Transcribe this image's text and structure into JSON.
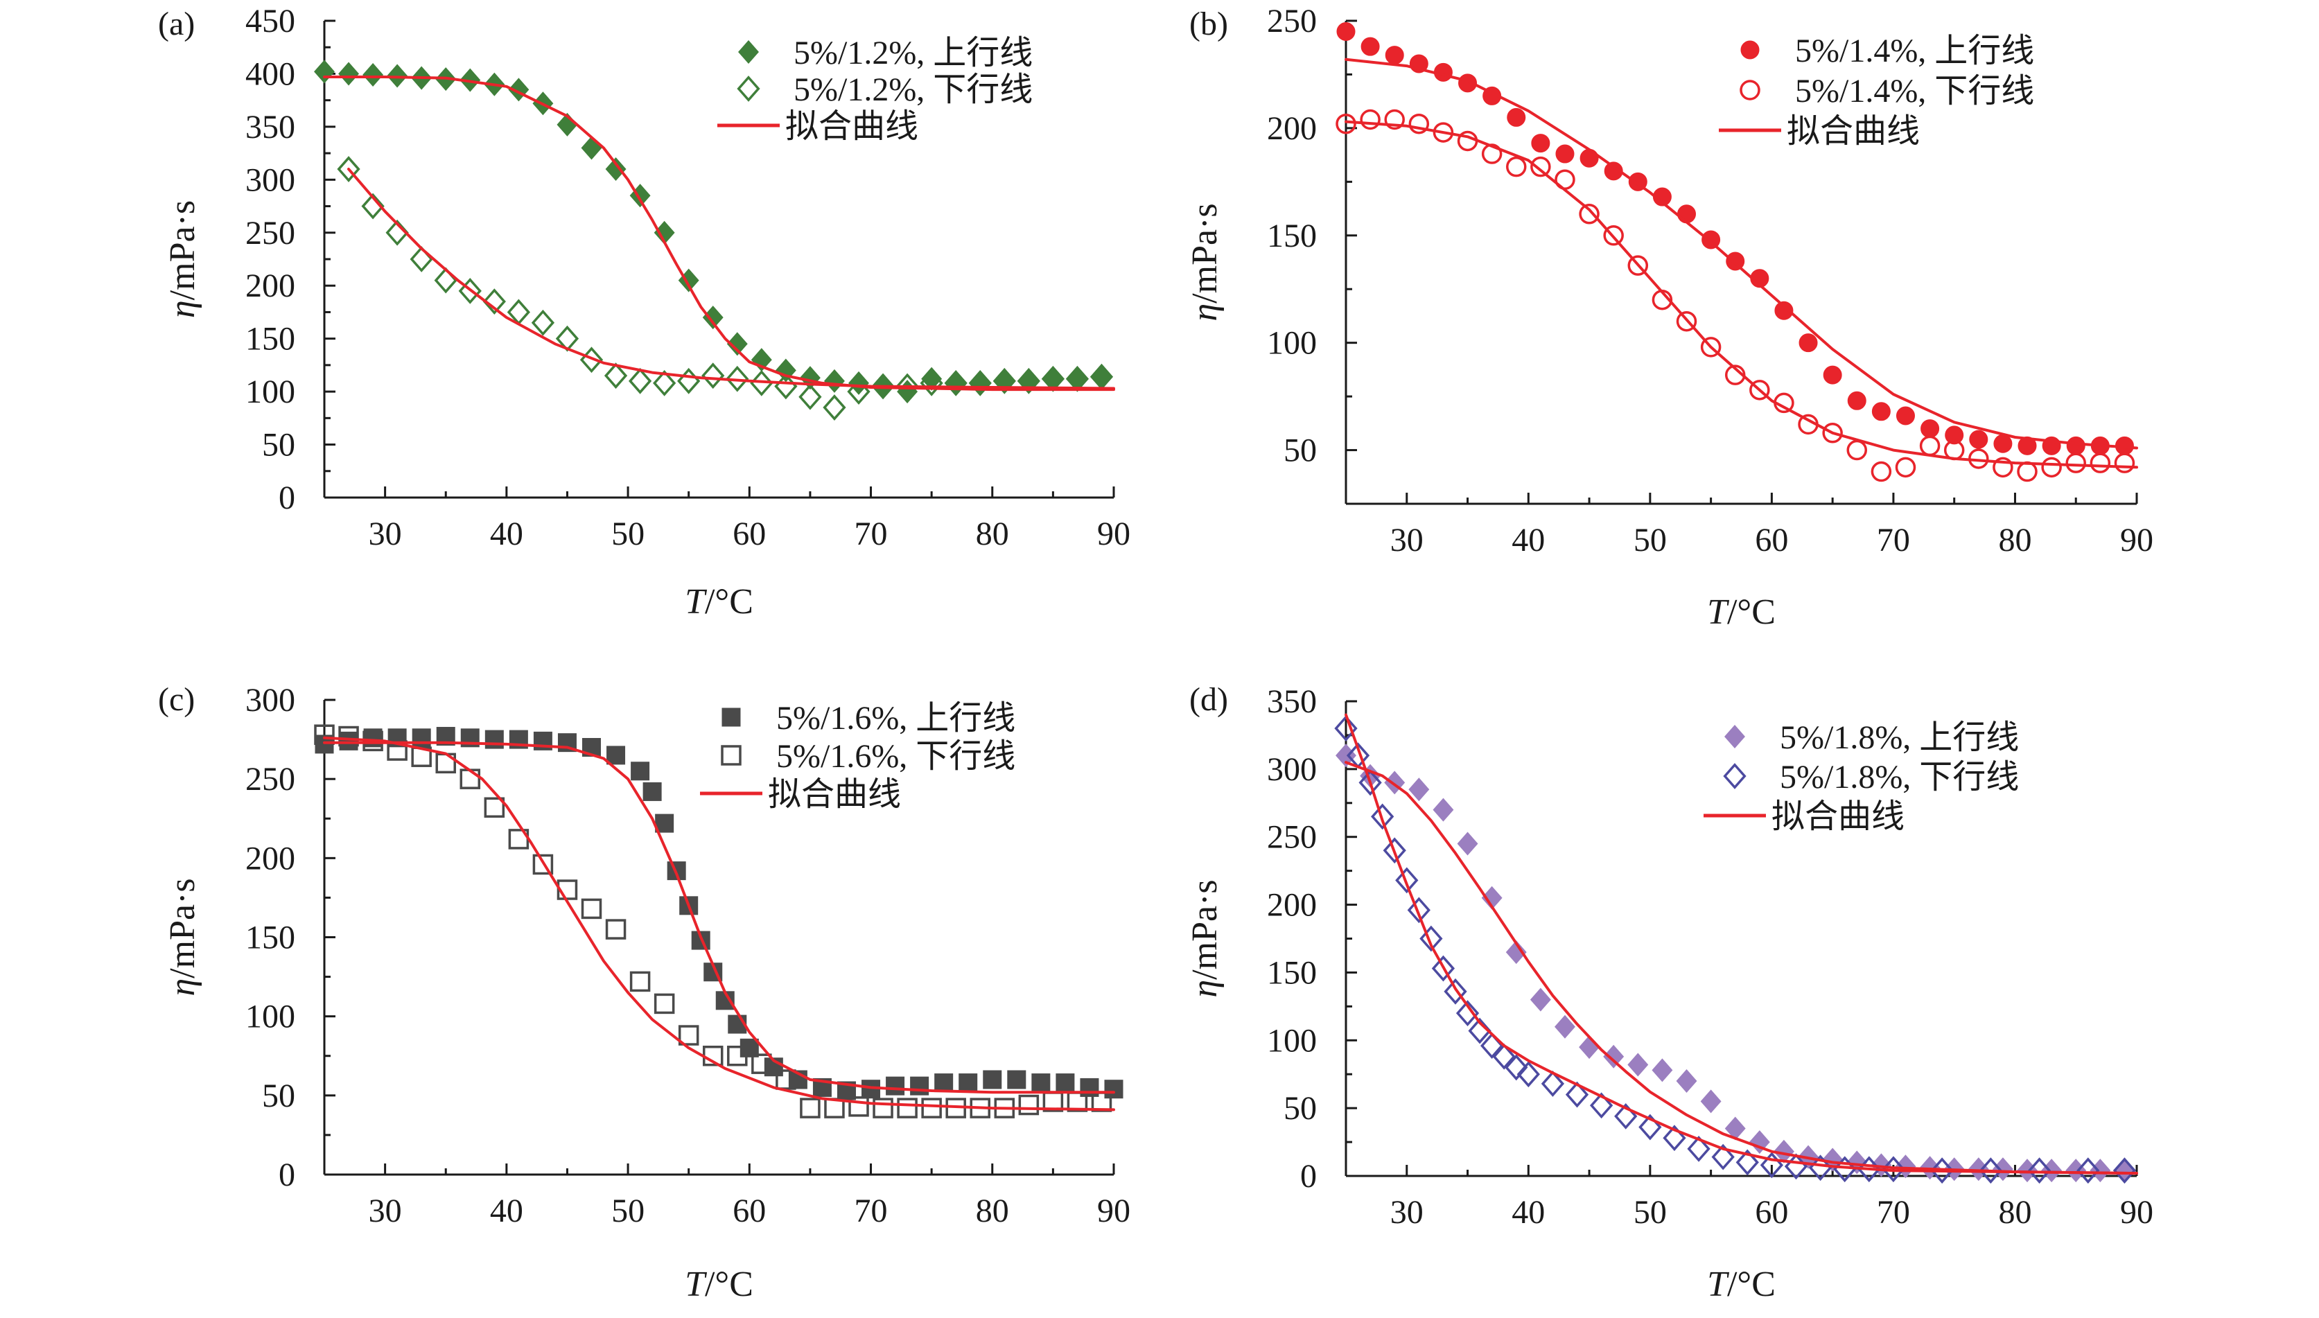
{
  "chart_data": [
    {
      "type": "scatter",
      "panel_label": "(a)",
      "xlabel_var": "T",
      "xlabel_unit": "/°C",
      "ylabel_var": "η",
      "ylabel_unit": "/mPa·s",
      "xlim": [
        25,
        90
      ],
      "ylim": [
        0,
        450
      ],
      "xticks": [
        30,
        40,
        50,
        60,
        70,
        80,
        90
      ],
      "yticks": [
        0,
        50,
        100,
        150,
        200,
        250,
        300,
        350,
        400,
        450
      ],
      "legend_position": "top-right",
      "colors": {
        "series": "#3f7f3a",
        "fit": "#e8242b"
      },
      "series": [
        {
          "name": "5%/1.2%, 上行线",
          "marker": "diamond-filled",
          "x": [
            25,
            27,
            29,
            31,
            33,
            35,
            37,
            39,
            41,
            43,
            45,
            47,
            49,
            51,
            53,
            55,
            57,
            59,
            61,
            63,
            65,
            67,
            69,
            71,
            73,
            75,
            77,
            79,
            81,
            83,
            85,
            87,
            89
          ],
          "y": [
            402,
            400,
            399,
            398,
            396,
            395,
            394,
            390,
            385,
            372,
            352,
            330,
            310,
            285,
            250,
            205,
            170,
            145,
            130,
            120,
            113,
            110,
            108,
            106,
            100,
            112,
            108,
            108,
            110,
            110,
            112,
            113,
            114
          ]
        },
        {
          "name": "5%/1.2%, 下行线",
          "marker": "diamond-open",
          "x": [
            27,
            29,
            31,
            33,
            35,
            37,
            39,
            41,
            43,
            45,
            47,
            49,
            51,
            53,
            55,
            57,
            59,
            61,
            63,
            65,
            67,
            69,
            71,
            73,
            75,
            77,
            79,
            81,
            83,
            85,
            87,
            89
          ],
          "y": [
            310,
            275,
            250,
            225,
            205,
            195,
            185,
            175,
            165,
            150,
            130,
            115,
            110,
            108,
            110,
            115,
            112,
            108,
            105,
            95,
            85,
            100,
            105,
            105,
            108,
            108,
            108,
            110,
            110,
            112,
            112,
            114
          ]
        },
        {
          "name": "拟合曲线",
          "type": "line",
          "x": [
            25,
            30,
            35,
            40,
            45,
            48,
            50,
            52,
            54,
            56,
            58,
            60,
            63,
            66,
            70,
            75,
            80,
            85,
            90
          ],
          "y": [
            397,
            397,
            396,
            388,
            360,
            330,
            300,
            262,
            220,
            180,
            150,
            128,
            115,
            108,
            104,
            103,
            102,
            102,
            102
          ]
        },
        {
          "type": "line",
          "x": [
            27,
            30,
            33,
            36,
            40,
            44,
            48,
            52,
            56,
            60,
            65,
            70,
            80,
            90
          ],
          "y": [
            310,
            270,
            235,
            205,
            170,
            145,
            127,
            118,
            113,
            110,
            107,
            105,
            104,
            103
          ]
        }
      ]
    },
    {
      "type": "scatter",
      "panel_label": "(b)",
      "xlabel_var": "T",
      "xlabel_unit": "/°C",
      "ylabel_var": "η",
      "ylabel_unit": "/mPa·s",
      "xlim": [
        25,
        90
      ],
      "ylim": [
        25,
        250
      ],
      "xticks": [
        30,
        40,
        50,
        60,
        70,
        80,
        90
      ],
      "yticks": [
        50,
        100,
        150,
        200,
        250
      ],
      "legend_position": "top-right",
      "colors": {
        "series": "#e8242b",
        "fit": "#e8242b"
      },
      "series": [
        {
          "name": "5%/1.4%, 上行线",
          "marker": "circle-filled",
          "x": [
            25,
            27,
            29,
            31,
            33,
            35,
            37,
            39,
            41,
            43,
            45,
            47,
            49,
            51,
            53,
            55,
            57,
            59,
            61,
            63,
            65,
            67,
            69,
            71,
            73,
            75,
            77,
            79,
            81,
            83,
            85,
            87,
            89
          ],
          "y": [
            245,
            238,
            234,
            230,
            226,
            221,
            215,
            205,
            193,
            188,
            186,
            180,
            175,
            168,
            160,
            148,
            138,
            130,
            115,
            100,
            85,
            73,
            68,
            66,
            60,
            57,
            55,
            53,
            52,
            52,
            52,
            52,
            52
          ]
        },
        {
          "name": "5%/1.4%, 下行线",
          "marker": "circle-open",
          "x": [
            25,
            27,
            29,
            31,
            33,
            35,
            37,
            39,
            41,
            43,
            45,
            47,
            49,
            51,
            53,
            55,
            57,
            59,
            61,
            63,
            65,
            67,
            69,
            71,
            73,
            75,
            77,
            79,
            81,
            83,
            85,
            87,
            89
          ],
          "y": [
            202,
            204,
            204,
            202,
            198,
            194,
            188,
            182,
            182,
            176,
            160,
            150,
            136,
            120,
            110,
            98,
            85,
            78,
            72,
            62,
            58,
            50,
            40,
            42,
            52,
            50,
            46,
            42,
            40,
            42,
            44,
            44,
            44
          ]
        },
        {
          "name": "拟合曲线",
          "type": "line",
          "x": [
            25,
            30,
            35,
            40,
            45,
            50,
            55,
            60,
            65,
            70,
            75,
            80,
            85,
            90
          ],
          "y": [
            232,
            229,
            222,
            208,
            190,
            170,
            147,
            122,
            97,
            76,
            63,
            56,
            53,
            51
          ]
        },
        {
          "type": "line",
          "x": [
            25,
            30,
            35,
            40,
            45,
            50,
            55,
            60,
            65,
            70,
            75,
            80,
            85,
            90
          ],
          "y": [
            203,
            201,
            196,
            185,
            162,
            130,
            98,
            73,
            58,
            50,
            46,
            44,
            43,
            42
          ]
        }
      ]
    },
    {
      "type": "scatter",
      "panel_label": "(c)",
      "xlabel_var": "T",
      "xlabel_unit": "/°C",
      "ylabel_var": "η",
      "ylabel_unit": "/mPa·s",
      "xlim": [
        25,
        90
      ],
      "ylim": [
        0,
        300
      ],
      "xticks": [
        30,
        40,
        50,
        60,
        70,
        80,
        90
      ],
      "yticks": [
        0,
        50,
        100,
        150,
        200,
        250,
        300
      ],
      "legend_position": "top-right",
      "colors": {
        "series": "#4a4a4a",
        "fit": "#e8242b"
      },
      "series": [
        {
          "name": "5%/1.6%, 上行线",
          "marker": "square-filled",
          "x": [
            25,
            27,
            29,
            31,
            33,
            35,
            37,
            39,
            41,
            43,
            45,
            47,
            49,
            51,
            52,
            53,
            54,
            55,
            56,
            57,
            58,
            59,
            60,
            62,
            64,
            66,
            68,
            70,
            72,
            74,
            76,
            78,
            80,
            82,
            84,
            86,
            88,
            90
          ],
          "y": [
            272,
            274,
            276,
            276,
            276,
            277,
            276,
            275,
            275,
            274,
            273,
            270,
            265,
            255,
            242,
            222,
            192,
            170,
            148,
            128,
            110,
            95,
            80,
            68,
            60,
            55,
            53,
            54,
            56,
            56,
            58,
            58,
            60,
            60,
            58,
            58,
            55,
            54
          ]
        },
        {
          "name": "5%/1.6%, 下行线",
          "marker": "square-open",
          "x": [
            25,
            27,
            29,
            31,
            33,
            35,
            37,
            39,
            41,
            43,
            45,
            47,
            49,
            51,
            53,
            55,
            57,
            59,
            61,
            63,
            65,
            67,
            69,
            71,
            73,
            75,
            77,
            79,
            81,
            83,
            85,
            87,
            89
          ],
          "y": [
            278,
            277,
            274,
            268,
            264,
            260,
            250,
            232,
            212,
            196,
            180,
            168,
            155,
            122,
            108,
            88,
            75,
            75,
            70,
            60,
            42,
            42,
            43,
            42,
            42,
            42,
            42,
            42,
            42,
            44,
            46,
            46,
            46
          ]
        },
        {
          "name": "拟合曲线",
          "type": "line",
          "x": [
            25,
            30,
            35,
            40,
            45,
            48,
            50,
            52,
            54,
            56,
            58,
            60,
            62,
            65,
            70,
            75,
            80,
            85,
            90
          ],
          "y": [
            273,
            273,
            273,
            272,
            270,
            263,
            250,
            225,
            190,
            150,
            115,
            90,
            72,
            60,
            55,
            53,
            52,
            52,
            52
          ]
        },
        {
          "type": "line",
          "x": [
            25,
            30,
            35,
            38,
            40,
            42,
            44,
            46,
            48,
            50,
            52,
            55,
            58,
            62,
            66,
            70,
            80,
            90
          ],
          "y": [
            276,
            274,
            266,
            250,
            233,
            210,
            185,
            160,
            135,
            115,
            98,
            80,
            67,
            55,
            48,
            45,
            42,
            41
          ]
        }
      ]
    },
    {
      "type": "scatter",
      "panel_label": "(d)",
      "xlabel_var": "T",
      "xlabel_unit": "/°C",
      "ylabel_var": "η",
      "ylabel_unit": "/mPa·s",
      "xlim": [
        25,
        90
      ],
      "ylim": [
        0,
        350
      ],
      "xticks": [
        30,
        40,
        50,
        60,
        70,
        80,
        90
      ],
      "yticks": [
        0,
        50,
        100,
        150,
        200,
        250,
        300,
        350
      ],
      "legend_position": "top-right",
      "colors": {
        "series_up": "#9b7fc0",
        "series_down": "#4c4aa0",
        "fit": "#e8242b"
      },
      "series": [
        {
          "name": "5%/1.8%, 上行线",
          "marker": "diamond-filled",
          "x": [
            25,
            27,
            29,
            31,
            33,
            35,
            37,
            39,
            41,
            43,
            45,
            47,
            49,
            51,
            53,
            55,
            57,
            59,
            61,
            63,
            65,
            67,
            69,
            71,
            73,
            75,
            77,
            79,
            81,
            83,
            85,
            87,
            89
          ],
          "y": [
            310,
            295,
            290,
            285,
            270,
            245,
            205,
            165,
            130,
            110,
            95,
            88,
            82,
            78,
            70,
            55,
            35,
            25,
            18,
            14,
            12,
            10,
            8,
            7,
            6,
            5,
            5,
            5,
            4,
            4,
            4,
            4,
            4
          ]
        },
        {
          "name": "5%/1.8%, 下行线",
          "marker": "diamond-open",
          "x": [
            25,
            26,
            27,
            28,
            29,
            30,
            31,
            32,
            33,
            34,
            35,
            36,
            37,
            38,
            39,
            40,
            42,
            44,
            46,
            48,
            50,
            52,
            54,
            56,
            58,
            60,
            62,
            64,
            66,
            68,
            70,
            74,
            78,
            82,
            86,
            89
          ],
          "y": [
            330,
            310,
            290,
            265,
            240,
            218,
            196,
            175,
            153,
            136,
            120,
            107,
            96,
            88,
            80,
            75,
            68,
            60,
            52,
            44,
            36,
            28,
            20,
            14,
            10,
            8,
            7,
            6,
            5,
            5,
            5,
            4,
            4,
            4,
            4,
            4
          ]
        },
        {
          "name": "拟合曲线",
          "type": "line",
          "x": [
            25,
            28,
            30,
            32,
            34,
            36,
            38,
            40,
            42,
            44,
            46,
            48,
            50,
            53,
            56,
            60,
            65,
            70,
            80,
            90
          ],
          "y": [
            305,
            295,
            282,
            262,
            238,
            212,
            185,
            158,
            133,
            112,
            93,
            77,
            62,
            45,
            31,
            18,
            10,
            6,
            3,
            2
          ]
        },
        {
          "type": "line",
          "x": [
            25,
            26,
            27,
            28,
            30,
            32,
            34,
            36,
            38,
            40,
            42,
            45,
            48,
            52,
            56,
            60,
            65,
            70,
            80,
            90
          ],
          "y": [
            340,
            315,
            290,
            262,
            215,
            170,
            138,
            113,
            96,
            85,
            76,
            63,
            50,
            34,
            20,
            12,
            7,
            4,
            3,
            2
          ]
        }
      ]
    }
  ]
}
